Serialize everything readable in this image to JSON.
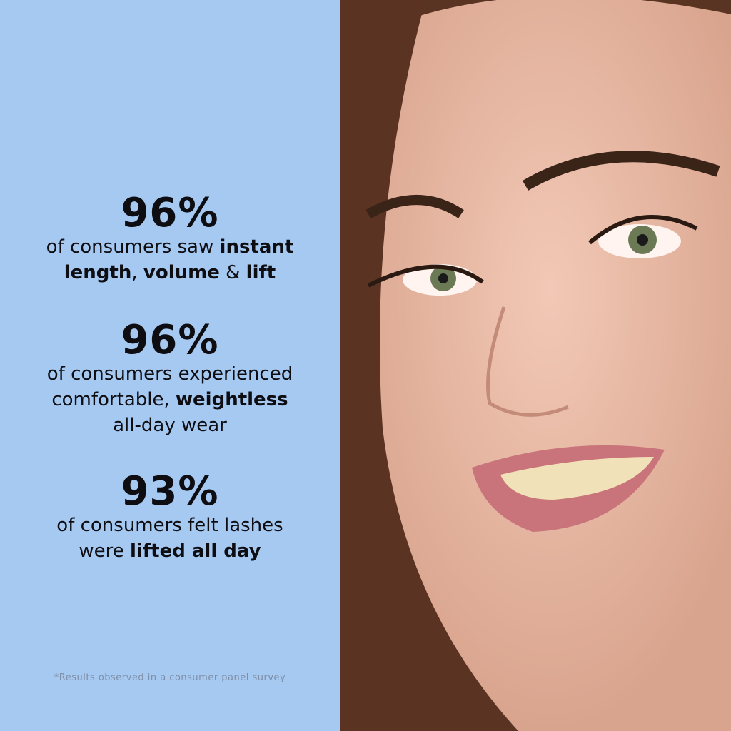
{
  "stats": [
    {
      "figure": "96%",
      "lines": [
        [
          {
            "text": "of consumers saw ",
            "bold": false
          },
          {
            "text": "instant",
            "bold": true
          }
        ],
        [
          {
            "text": "length",
            "bold": true
          },
          {
            "text": ", ",
            "bold": false
          },
          {
            "text": "volume",
            "bold": true
          },
          {
            "text": " & ",
            "bold": false
          },
          {
            "text": "lift",
            "bold": true
          }
        ]
      ]
    },
    {
      "figure": "96%",
      "lines": [
        [
          {
            "text": "of consumers experienced",
            "bold": false
          }
        ],
        [
          {
            "text": "comfortable, ",
            "bold": false
          },
          {
            "text": "weightless",
            "bold": true
          }
        ],
        [
          {
            "text": "all-day wear",
            "bold": false
          }
        ]
      ]
    },
    {
      "figure": "93%",
      "lines": [
        [
          {
            "text": "of consumers felt lashes",
            "bold": false
          }
        ],
        [
          {
            "text": "were ",
            "bold": false
          },
          {
            "text": "lifted all day",
            "bold": true
          }
        ]
      ]
    }
  ],
  "footnote": "*Results observed in a consumer panel survey"
}
